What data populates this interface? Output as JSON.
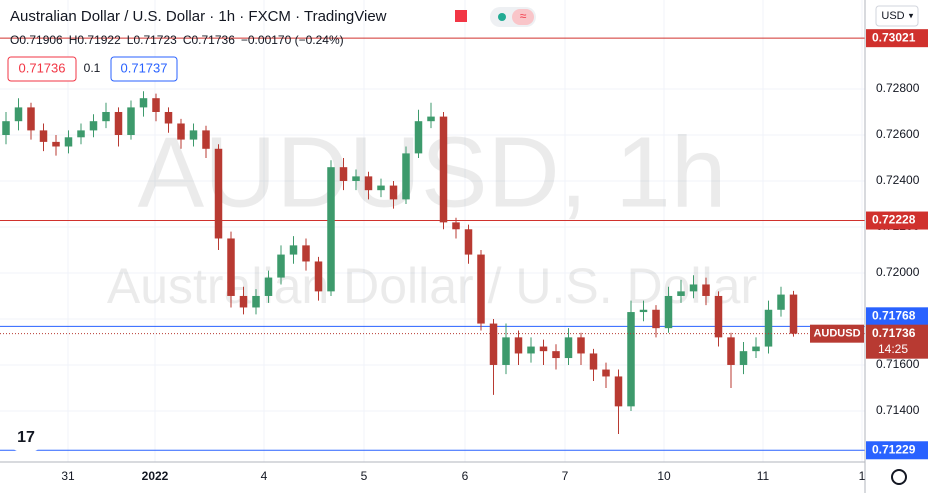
{
  "chart_data": {
    "type": "candlestick",
    "title": "Australian Dollar / U.S. Dollar · 1h · FXCM · TradingView",
    "symbol": "AUDUSD",
    "watermark": [
      "AUDUSD, 1h",
      "Australian Dollar / U.S. Dollar"
    ],
    "ohlc_legend": [
      "O0.71906",
      "H0.71922",
      "L0.71723",
      "C0.71736",
      "−0.00170 (−0.24%)"
    ],
    "sell_price": "0.71736",
    "spread": "0.1",
    "buy_price": "0.71737",
    "currency": "USD",
    "countdown": "14:25",
    "up_color": "#3d9a6c",
    "down_color": "#b83a32",
    "open": [
      0.726,
      0.7266,
      0.7272,
      0.7262,
      0.7257,
      0.7255,
      0.7259,
      0.7262,
      0.7266,
      0.727,
      0.726,
      0.7272,
      0.7276,
      0.727,
      0.7265,
      0.7258,
      0.7262,
      0.7254,
      0.7215,
      0.719,
      0.7185,
      0.719,
      0.7198,
      0.7208,
      0.7212,
      0.7205,
      0.7192,
      0.7246,
      0.724,
      0.7242,
      0.7236,
      0.7238,
      0.7232,
      0.7252,
      0.7266,
      0.7268,
      0.7222,
      0.7219,
      0.7208,
      0.7178,
      0.716,
      0.7172,
      0.7165,
      0.7168,
      0.7166,
      0.7163,
      0.7172,
      0.7165,
      0.7158,
      0.7155,
      0.7142,
      0.7183,
      0.7184,
      0.7176,
      0.719,
      0.7192,
      0.7195,
      0.719,
      0.7172,
      0.716,
      0.7166,
      0.7168,
      0.7184,
      0.71906
    ],
    "high": [
      0.727,
      0.7276,
      0.7274,
      0.7265,
      0.726,
      0.7262,
      0.7265,
      0.7269,
      0.7274,
      0.7272,
      0.7275,
      0.7279,
      0.7278,
      0.7272,
      0.7267,
      0.7265,
      0.7264,
      0.7256,
      0.7218,
      0.7194,
      0.7193,
      0.7201,
      0.7212,
      0.7216,
      0.7215,
      0.7207,
      0.7249,
      0.725,
      0.7245,
      0.7244,
      0.7241,
      0.724,
      0.7255,
      0.7271,
      0.7274,
      0.727,
      0.7224,
      0.7221,
      0.721,
      0.718,
      0.7178,
      0.7175,
      0.7172,
      0.7171,
      0.7169,
      0.7176,
      0.7174,
      0.7167,
      0.7161,
      0.7158,
      0.7188,
      0.7188,
      0.7186,
      0.7194,
      0.7197,
      0.7199,
      0.7198,
      0.7192,
      0.7174,
      0.717,
      0.7172,
      0.7188,
      0.7194,
      0.71922
    ],
    "low": [
      0.7256,
      0.7262,
      0.7258,
      0.7253,
      0.7251,
      0.7252,
      0.7256,
      0.7259,
      0.7263,
      0.7255,
      0.7258,
      0.7268,
      0.7266,
      0.7261,
      0.7254,
      0.7255,
      0.725,
      0.721,
      0.7185,
      0.7182,
      0.7182,
      0.7187,
      0.7195,
      0.7204,
      0.7201,
      0.7188,
      0.719,
      0.7236,
      0.7236,
      0.7232,
      0.7233,
      0.7228,
      0.723,
      0.725,
      0.7263,
      0.7219,
      0.7215,
      0.7204,
      0.7175,
      0.7147,
      0.7156,
      0.716,
      0.7161,
      0.716,
      0.7158,
      0.716,
      0.716,
      0.7153,
      0.715,
      0.713,
      0.714,
      0.7179,
      0.7172,
      0.7174,
      0.7187,
      0.7189,
      0.7186,
      0.7168,
      0.715,
      0.7156,
      0.7163,
      0.7165,
      0.7181,
      0.71723
    ],
    "close": [
      0.7266,
      0.7272,
      0.7262,
      0.7257,
      0.7255,
      0.7259,
      0.7262,
      0.7266,
      0.727,
      0.726,
      0.7272,
      0.7276,
      0.727,
      0.7265,
      0.7258,
      0.7262,
      0.7254,
      0.7215,
      0.719,
      0.7185,
      0.719,
      0.7198,
      0.7208,
      0.7212,
      0.7205,
      0.7192,
      0.7246,
      0.724,
      0.7242,
      0.7236,
      0.7238,
      0.7232,
      0.7252,
      0.7266,
      0.7268,
      0.7222,
      0.7219,
      0.7208,
      0.7178,
      0.716,
      0.7172,
      0.7165,
      0.7168,
      0.7166,
      0.7163,
      0.7172,
      0.7165,
      0.7158,
      0.7155,
      0.7142,
      0.7183,
      0.7184,
      0.7176,
      0.719,
      0.7192,
      0.7195,
      0.719,
      0.7172,
      0.716,
      0.7166,
      0.7168,
      0.7184,
      0.71906,
      0.71736
    ],
    "xlim": [
      -0.48,
      68.72
    ],
    "xticks": [
      {
        "value": 4.96,
        "label": "31"
      },
      {
        "value": 11.92,
        "label": "2022"
      },
      {
        "value": 20.64,
        "label": "4"
      },
      {
        "value": 28.64,
        "label": "5"
      },
      {
        "value": 36.72,
        "label": "6"
      },
      {
        "value": 44.72,
        "label": "7"
      },
      {
        "value": 52.64,
        "label": "10"
      },
      {
        "value": 60.56,
        "label": "11"
      },
      {
        "value": 68.48,
        "label": "1"
      }
    ],
    "ylim": [
      0.71178,
      0.73187
    ],
    "yticks": [
      {
        "value": 0.728,
        "label": "0.72800"
      },
      {
        "value": 0.726,
        "label": "0.72600"
      },
      {
        "value": 0.724,
        "label": "0.72400"
      },
      {
        "value": 0.722,
        "label": "0.72200"
      },
      {
        "value": 0.72,
        "label": "0.72000"
      },
      {
        "value": 0.718,
        "label": "0.71800"
      },
      {
        "value": 0.716,
        "label": "0.71600"
      },
      {
        "value": 0.714,
        "label": "0.71400"
      }
    ],
    "grid": true,
    "hlines": [
      {
        "value": 0.73021,
        "color": "#d0312d"
      },
      {
        "value": 0.72228,
        "color": "#d0312d"
      },
      {
        "value": 0.71768,
        "color": "#2962ff"
      },
      {
        "value": 0.71229,
        "color": "#2962ff"
      }
    ],
    "last_price": 0.71736
  }
}
